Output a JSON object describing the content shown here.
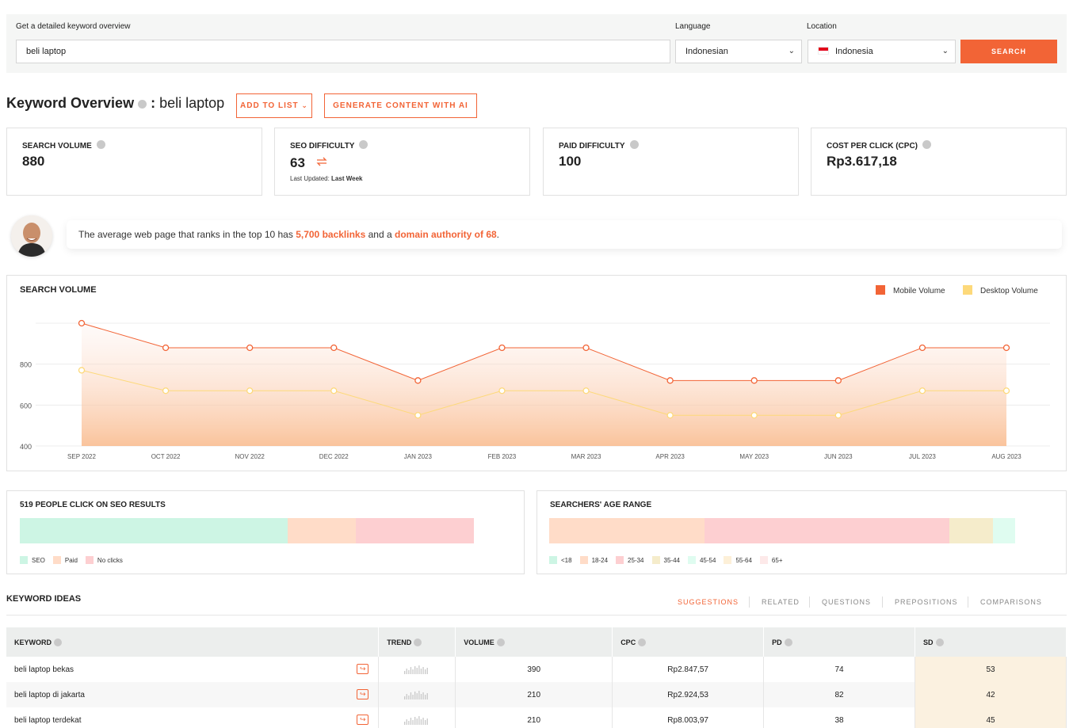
{
  "search": {
    "label": "Get a detailed keyword overview",
    "value": "beli laptop",
    "language_label": "Language",
    "language_value": "Indonesian",
    "location_label": "Location",
    "location_value": "Indonesia",
    "button": "SEARCH"
  },
  "header": {
    "title": "Keyword Overview",
    "separator": ":",
    "keyword": "beli laptop",
    "add_to_list": "ADD TO LIST",
    "generate_ai": "GENERATE CONTENT WITH AI"
  },
  "metrics": [
    {
      "label": "SEARCH VOLUME",
      "value": "880"
    },
    {
      "label": "SEO DIFFICULTY",
      "value": "63",
      "updated_prefix": "Last Updated:",
      "updated_value": "Last Week"
    },
    {
      "label": "PAID DIFFICULTY",
      "value": "100"
    },
    {
      "label": "COST PER CLICK (CPC)",
      "value": "Rp3.617,18"
    }
  ],
  "tip": {
    "text1": "The average web page that ranks in the top 10 has",
    "backlinks": "5,700 backlinks",
    "text2": "and a",
    "authority": "domain authority of 68",
    "text3": "."
  },
  "search_volume_chart": {
    "title": "SEARCH VOLUME",
    "legend": [
      "Mobile Volume",
      "Desktop Volume"
    ],
    "colors": {
      "mobile": "#f26436",
      "desktop": "#fdd97a"
    }
  },
  "chart_data": {
    "type": "line",
    "title": "SEARCH VOLUME",
    "x": [
      "SEP 2022",
      "OCT 2022",
      "NOV 2022",
      "DEC 2022",
      "JAN 2023",
      "FEB 2023",
      "MAR 2023",
      "APR 2023",
      "MAY 2023",
      "JUN 2023",
      "JUL 2023",
      "AUG 2023"
    ],
    "series": [
      {
        "name": "Mobile Volume",
        "values": [
          1000,
          880,
          880,
          880,
          720,
          880,
          880,
          720,
          720,
          720,
          880,
          880
        ]
      },
      {
        "name": "Desktop Volume",
        "values": [
          770,
          670,
          670,
          670,
          550,
          670,
          670,
          550,
          550,
          550,
          670,
          670
        ]
      }
    ],
    "yticks": [
      400,
      600,
      800
    ],
    "ylim": [
      400,
      1000
    ],
    "grid": true,
    "legend_position": "top-right"
  },
  "clicks": {
    "title": "519 PEOPLE CLICK ON SEO RESULTS",
    "segments": [
      {
        "name": "SEO",
        "fraction": 0.59,
        "color": "#cdf5e4"
      },
      {
        "name": "Paid",
        "fraction": 0.15,
        "color": "#ffdcc8"
      },
      {
        "name": "No clicks",
        "fraction": 0.26,
        "color": "#fdcfd1"
      }
    ]
  },
  "age": {
    "title": "SEARCHERS' AGE RANGE",
    "segments": [
      {
        "name": "<18",
        "fraction": 0.0,
        "color": "#cdf5e4"
      },
      {
        "name": "18-24",
        "fraction": 0.334,
        "color": "#ffdcc8"
      },
      {
        "name": "25-34",
        "fraction": 0.524,
        "color": "#fdcfd1"
      },
      {
        "name": "35-44",
        "fraction": 0.095,
        "color": "#f5eccb"
      },
      {
        "name": "45-54",
        "fraction": 0.047,
        "color": "#dffcf0"
      },
      {
        "name": "55-64",
        "fraction": 0.0,
        "color": "#fdf0d8"
      },
      {
        "name": "65+",
        "fraction": 0.0,
        "color": "#fde9e9"
      }
    ]
  },
  "keyword_ideas": {
    "title": "KEYWORD IDEAS",
    "tabs": [
      "SUGGESTIONS",
      "RELATED",
      "QUESTIONS",
      "PREPOSITIONS",
      "COMPARISONS"
    ],
    "columns": [
      "KEYWORD",
      "TREND",
      "VOLUME",
      "CPC",
      "PD",
      "SD"
    ],
    "rows": [
      {
        "keyword": "beli laptop bekas",
        "volume": "390",
        "cpc": "Rp2.847,57",
        "pd": "74",
        "sd": "53"
      },
      {
        "keyword": "beli laptop di jakarta",
        "volume": "210",
        "cpc": "Rp2.924,53",
        "pd": "82",
        "sd": "42"
      },
      {
        "keyword": "beli laptop terdekat",
        "volume": "210",
        "cpc": "Rp8.003,97",
        "pd": "38",
        "sd": "45"
      }
    ]
  }
}
